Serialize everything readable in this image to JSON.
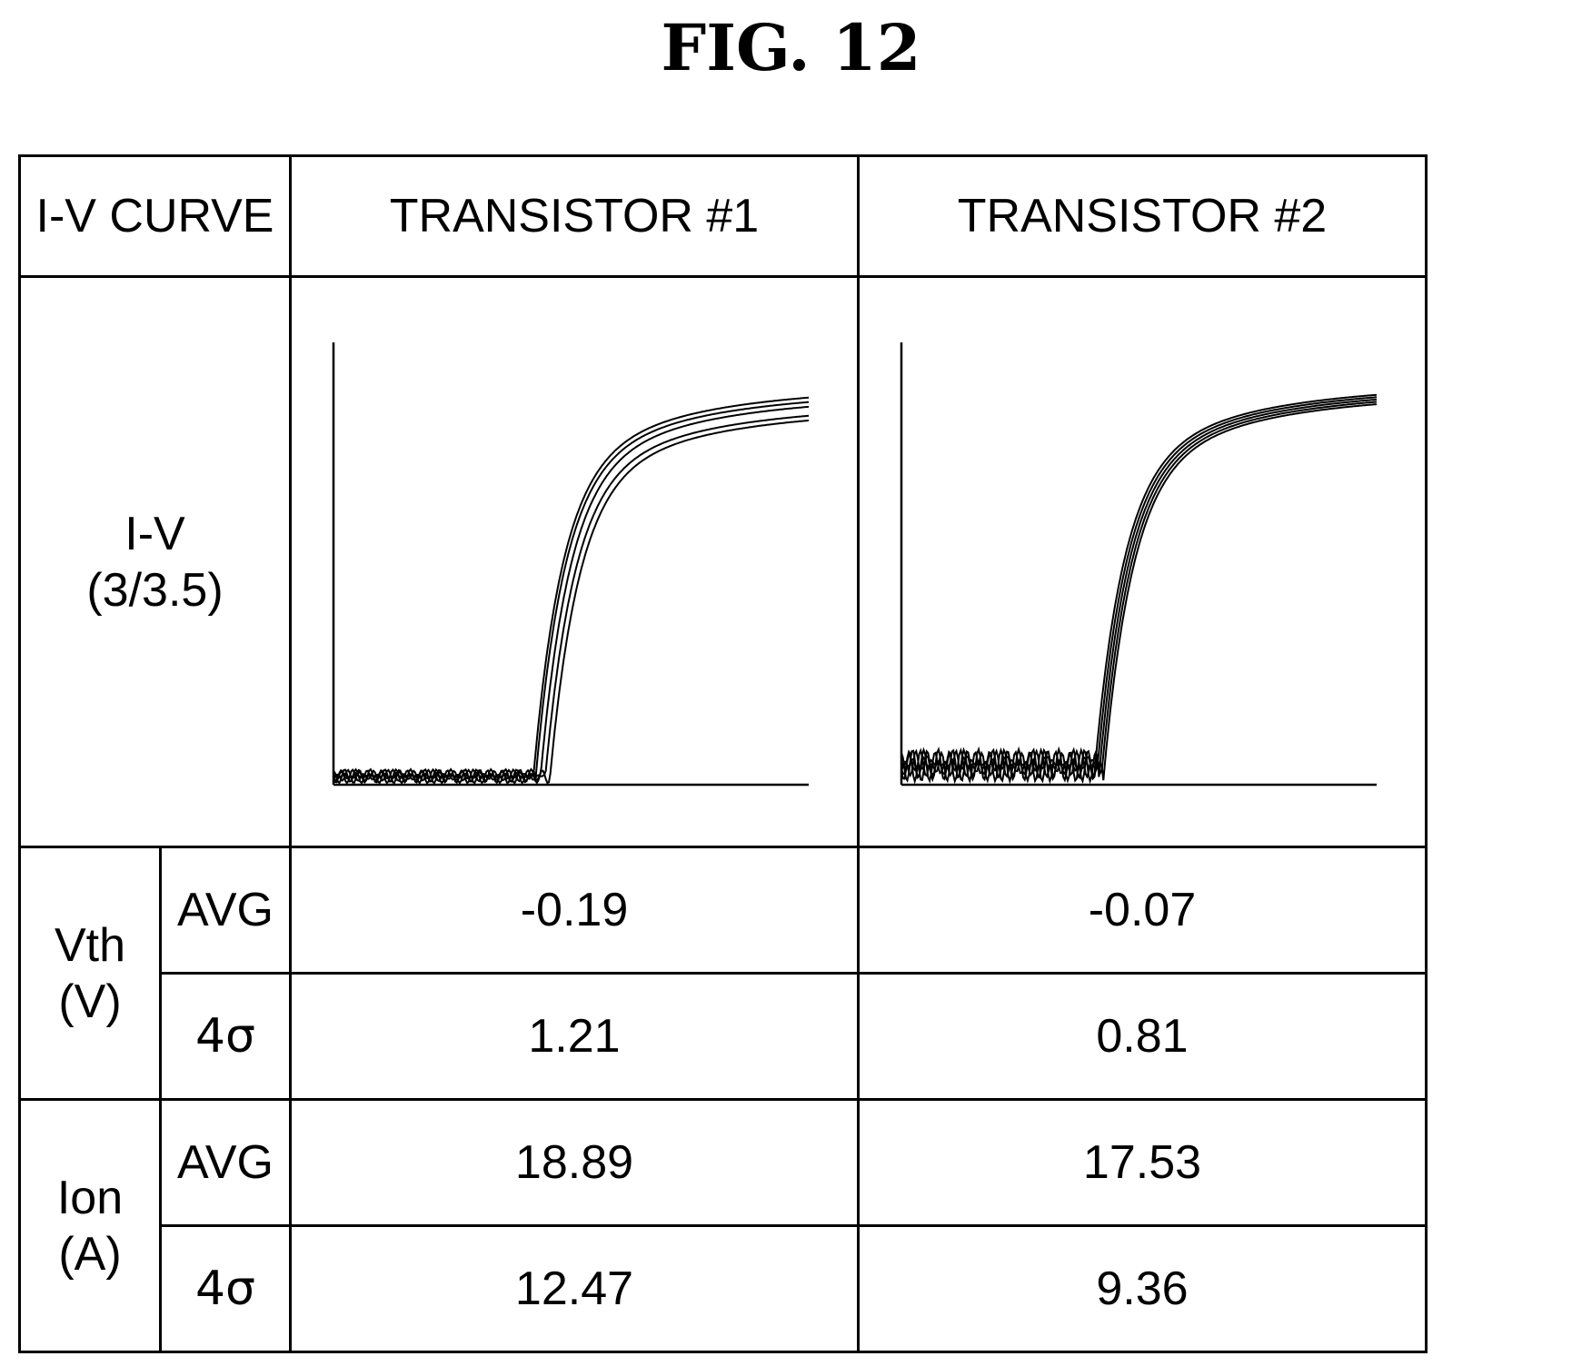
{
  "figure": {
    "title": "FIG. 12"
  },
  "table": {
    "corner_label": "I-V CURVE",
    "columns": [
      "TRANSISTOR #1",
      "TRANSISTOR #2"
    ],
    "iv_row": {
      "label_line1": "I-V",
      "label_line2": "(3/3.5)"
    },
    "vth": {
      "label_line1": "Vth",
      "label_line2": "(V)",
      "avg_label": "AVG",
      "sigma_label": "4σ",
      "avg": [
        "-0.19",
        "-0.07"
      ],
      "sigma": [
        "1.21",
        "0.81"
      ]
    },
    "ion": {
      "label_line1": "Ion",
      "label_line2": "(A)",
      "avg_label": "AVG",
      "sigma_label": "4σ",
      "avg": [
        "18.89",
        "17.53"
      ],
      "sigma": [
        "12.47",
        "9.36"
      ]
    }
  },
  "chart_data": [
    {
      "type": "line",
      "title": "",
      "xlabel": "",
      "ylabel": "",
      "grid": false,
      "x_range": [
        0,
        1
      ],
      "y_range": [
        0,
        1
      ],
      "series": [
        {
          "threshold": 0.42,
          "plateau": 0.9,
          "noise": 0.035
        },
        {
          "threshold": 0.425,
          "plateau": 0.89,
          "noise": 0.035
        },
        {
          "threshold": 0.435,
          "plateau": 0.88,
          "noise": 0.035
        },
        {
          "threshold": 0.445,
          "plateau": 0.86,
          "noise": 0.035
        },
        {
          "threshold": 0.455,
          "plateau": 0.85,
          "noise": 0.035
        }
      ]
    },
    {
      "type": "line",
      "title": "",
      "xlabel": "",
      "ylabel": "",
      "grid": false,
      "x_range": [
        0,
        1
      ],
      "y_range": [
        0,
        1
      ],
      "series": [
        {
          "threshold": 0.405,
          "plateau": 0.905,
          "noise": 0.08
        },
        {
          "threshold": 0.41,
          "plateau": 0.9,
          "noise": 0.08
        },
        {
          "threshold": 0.415,
          "plateau": 0.895,
          "noise": 0.08
        },
        {
          "threshold": 0.42,
          "plateau": 0.89,
          "noise": 0.08
        },
        {
          "threshold": 0.425,
          "plateau": 0.885,
          "noise": 0.08
        }
      ]
    }
  ]
}
